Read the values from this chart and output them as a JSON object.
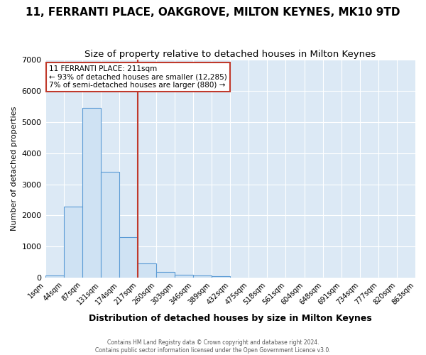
{
  "title": "11, FERRANTI PLACE, OAKGROVE, MILTON KEYNES, MK10 9TD",
  "subtitle": "Size of property relative to detached houses in Milton Keynes",
  "xlabel": "Distribution of detached houses by size in Milton Keynes",
  "ylabel": "Number of detached properties",
  "bin_labels": [
    "1sqm",
    "44sqm",
    "87sqm",
    "131sqm",
    "174sqm",
    "217sqm",
    "260sqm",
    "303sqm",
    "346sqm",
    "389sqm",
    "432sqm",
    "475sqm",
    "518sqm",
    "561sqm",
    "604sqm",
    "648sqm",
    "691sqm",
    "734sqm",
    "777sqm",
    "820sqm",
    "863sqm"
  ],
  "bar_values": [
    70,
    2280,
    5450,
    3400,
    1310,
    460,
    185,
    90,
    60,
    40,
    0,
    0,
    0,
    0,
    0,
    0,
    0,
    0,
    0,
    0
  ],
  "bar_color": "#cfe2f3",
  "bar_edge_color": "#5b9bd5",
  "red_line_x": 5,
  "red_line_color": "#c0392b",
  "annotation_text": "11 FERRANTI PLACE: 211sqm\n← 93% of detached houses are smaller (12,285)\n7% of semi-detached houses are larger (880) →",
  "annotation_box_color": "white",
  "annotation_box_edge": "#c0392b",
  "ylim": [
    0,
    7000
  ],
  "yticks": [
    0,
    1000,
    2000,
    3000,
    4000,
    5000,
    6000,
    7000
  ],
  "footer": "Contains HM Land Registry data © Crown copyright and database right 2024.\nContains public sector information licensed under the Open Government Licence v3.0.",
  "bg_color": "#dce9f5",
  "title_fontsize": 11,
  "subtitle_fontsize": 9.5
}
